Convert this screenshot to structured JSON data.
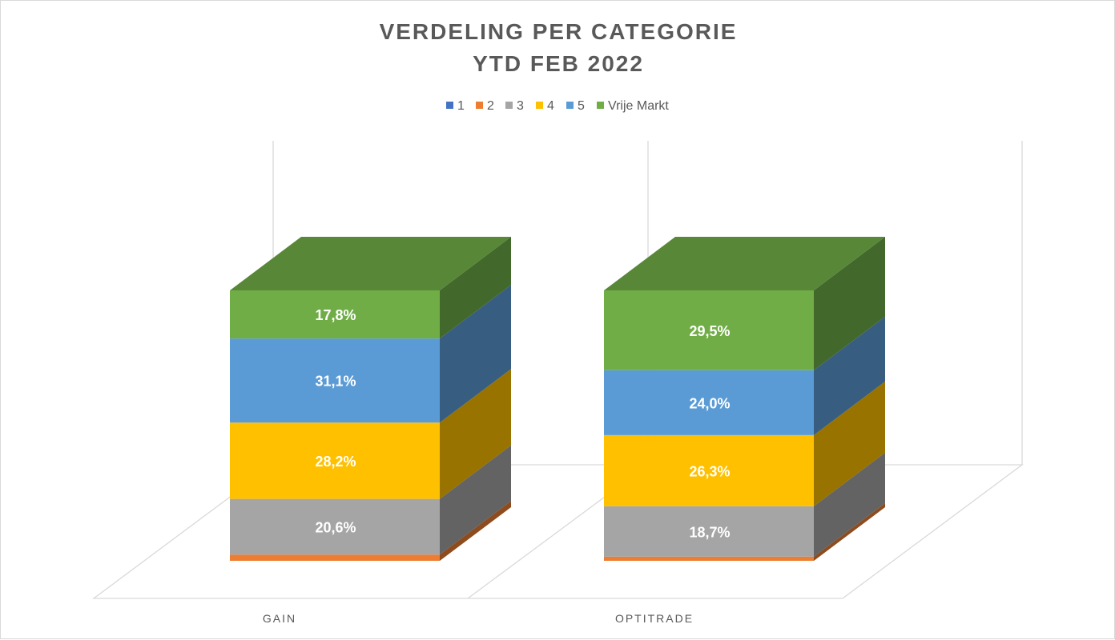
{
  "chart_data": {
    "type": "bar",
    "stacked": true,
    "three_d": true,
    "percent_stacked": true,
    "title": "VERDELING  PER CATEGORIE",
    "subtitle": "YTD FEB 2022",
    "categories": [
      "GAIN",
      "OPTITRADE"
    ],
    "series": [
      {
        "name": "1",
        "color": "#4472C4",
        "values": [
          0.0,
          0.0
        ],
        "labels": [
          "",
          ""
        ]
      },
      {
        "name": "2",
        "color": "#ED7D31",
        "values": [
          2.3,
          1.5
        ],
        "labels": [
          "",
          ""
        ]
      },
      {
        "name": "3",
        "color": "#A5A5A5",
        "values": [
          20.6,
          18.7
        ],
        "labels": [
          "20,6%",
          "18,7%"
        ]
      },
      {
        "name": "4",
        "color": "#FFC000",
        "values": [
          28.2,
          26.3
        ],
        "labels": [
          "28,2%",
          "26,3%"
        ]
      },
      {
        "name": "5",
        "color": "#5B9BD5",
        "values": [
          31.1,
          24.0
        ],
        "labels": [
          "31,1%",
          "24,0%"
        ]
      },
      {
        "name": "Vrije Markt",
        "color": "#70AD47",
        "values": [
          17.8,
          29.5
        ],
        "labels": [
          "17,8%",
          "29,5%"
        ]
      }
    ],
    "ylim": [
      0,
      100
    ],
    "legend_position": "top",
    "gridlines": false
  }
}
